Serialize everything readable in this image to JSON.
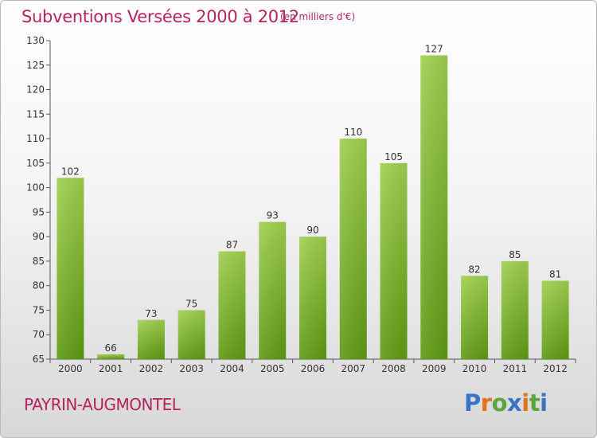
{
  "header": {
    "title": "Subventions Versées 2000 à 2012",
    "unit_note": "(en milliers d'€)"
  },
  "footer": {
    "place": "PAYRIN-AUGMONTEL",
    "logo_text": "Proxiti"
  },
  "colors": {
    "title": "#b5245b",
    "bar_top": "#9fd04f",
    "bar_bottom": "#5e9a12",
    "logo_letters": [
      "#3a72c4",
      "#e2711d",
      "#5aa63a",
      "#3a72c4",
      "#e2711d",
      "#5aa63a",
      "#3a72c4"
    ]
  },
  "chart_data": {
    "type": "bar",
    "title": "Subventions Versées 2000 à 2012",
    "subtitle": "(en milliers d'€)",
    "categories": [
      "2000",
      "2001",
      "2002",
      "2003",
      "2004",
      "2005",
      "2006",
      "2007",
      "2008",
      "2009",
      "2010",
      "2011",
      "2012"
    ],
    "values": [
      102,
      66,
      73,
      75,
      87,
      93,
      90,
      110,
      105,
      127,
      82,
      85,
      81
    ],
    "ylim": [
      65,
      130
    ],
    "yticks": [
      65,
      70,
      75,
      80,
      85,
      90,
      95,
      100,
      105,
      110,
      115,
      120,
      125,
      130
    ],
    "xlabel": "",
    "ylabel": "",
    "grid": false,
    "data_labels": true
  }
}
